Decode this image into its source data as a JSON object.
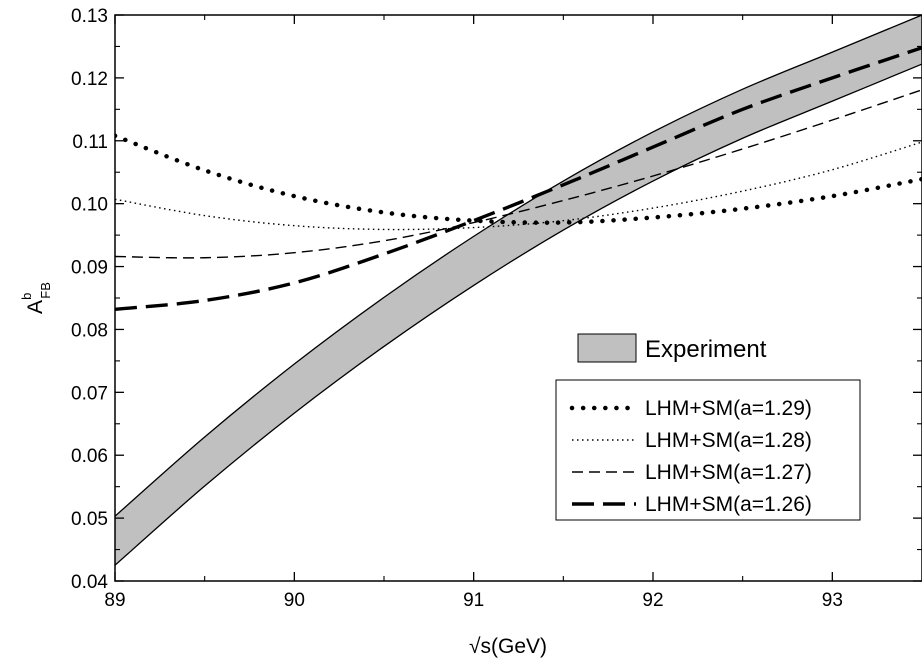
{
  "chart_data": {
    "type": "line",
    "title": "",
    "xlabel": "√s(GeV)",
    "ylabel": {
      "main": "A",
      "sup": "b",
      "sub": "FB"
    },
    "xlim": [
      89.0,
      93.5
    ],
    "ylim": [
      0.04,
      0.13
    ],
    "xticks": [
      89,
      90,
      91,
      92,
      93
    ],
    "xtick_labels": [
      "89",
      "90",
      "91",
      "92",
      "93"
    ],
    "yticks": [
      0.04,
      0.05,
      0.06,
      0.07,
      0.08,
      0.09,
      0.1,
      0.11,
      0.12,
      0.13
    ],
    "ytick_labels": [
      "0.04",
      "0.05",
      "0.06",
      "0.07",
      "0.08",
      "0.09",
      "0.10",
      "0.11",
      "0.12",
      "0.13"
    ],
    "grid": false,
    "band": {
      "name": "Experiment",
      "color": "#c0c0c0",
      "x": [
        89.0,
        89.5,
        90.0,
        90.5,
        91.0,
        91.5,
        92.0,
        92.5,
        93.0,
        93.5
      ],
      "upper": [
        0.0503,
        0.0629,
        0.0745,
        0.0851,
        0.0948,
        0.1036,
        0.1114,
        0.1182,
        0.1241,
        0.13
      ],
      "lower": [
        0.0425,
        0.0551,
        0.0667,
        0.0773,
        0.087,
        0.0958,
        0.1036,
        0.1104,
        0.1163,
        0.1222
      ]
    },
    "series": [
      {
        "name": "LHM+SM(a=1.29)",
        "style": "dotted-thick",
        "x": [
          89.0,
          89.5,
          90.0,
          90.5,
          91.0,
          91.5,
          92.0,
          92.5,
          93.0,
          93.5
        ],
        "values": [
          0.1108,
          0.1053,
          0.1012,
          0.0986,
          0.0973,
          0.097,
          0.0978,
          0.0992,
          0.1012,
          0.1039
        ]
      },
      {
        "name": "LHM+SM(a=1.28)",
        "style": "dotted-thin",
        "x": [
          89.0,
          89.5,
          90.0,
          90.5,
          91.0,
          91.5,
          92.0,
          92.5,
          93.0,
          93.5
        ],
        "values": [
          0.1007,
          0.0981,
          0.0965,
          0.0959,
          0.0962,
          0.0973,
          0.0993,
          0.102,
          0.1054,
          0.1098
        ]
      },
      {
        "name": "LHM+SM(a=1.27)",
        "style": "dashed-thin",
        "x": [
          89.0,
          89.5,
          90.0,
          90.5,
          91.0,
          91.5,
          92.0,
          92.5,
          93.0,
          93.5
        ],
        "values": [
          0.0916,
          0.0914,
          0.0922,
          0.0941,
          0.097,
          0.1005,
          0.1044,
          0.1087,
          0.1133,
          0.1181
        ]
      },
      {
        "name": "LHM+SM(a=1.26)",
        "style": "dashed-thick",
        "x": [
          89.0,
          89.5,
          90.0,
          90.5,
          91.0,
          91.5,
          92.0,
          92.5,
          93.0,
          93.5
        ],
        "values": [
          0.0832,
          0.0846,
          0.0874,
          0.092,
          0.0973,
          0.103,
          0.109,
          0.115,
          0.12,
          0.1248
        ]
      }
    ],
    "legend": {
      "placement": "lower-right"
    }
  }
}
